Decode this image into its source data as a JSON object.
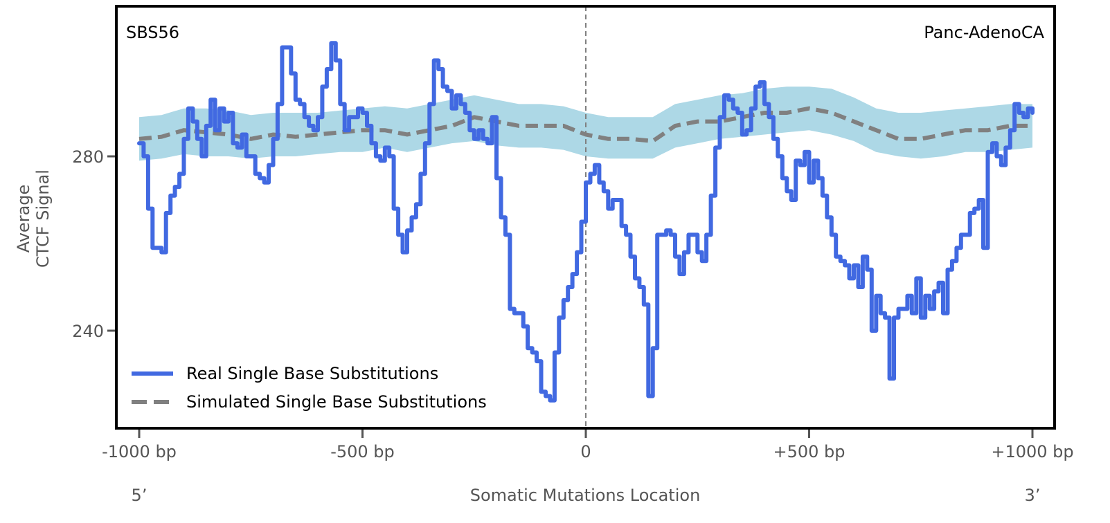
{
  "chart_data": {
    "type": "line",
    "signature_label": "SBS56",
    "cancer_type_label": "Panc-AdenoCA",
    "xlabel": "Somatic Mutations Location",
    "ylabel_lines": [
      "Average",
      "CTCF Signal"
    ],
    "xlim": [
      -1000,
      1000
    ],
    "ylim": [
      219,
      315
    ],
    "x_ticks": [
      {
        "value": -1000,
        "label": "-1000 bp"
      },
      {
        "value": -500,
        "label": "-500 bp"
      },
      {
        "value": 0,
        "label": "0"
      },
      {
        "value": 500,
        "label": "+500 bp"
      },
      {
        "value": 1000,
        "label": "+1000 bp"
      }
    ],
    "y_ticks": [
      {
        "value": 280,
        "label": "280"
      },
      {
        "value": 240,
        "label": "240"
      }
    ],
    "end_labels": {
      "left": "5’",
      "right": "3’"
    },
    "center_line": 0,
    "legend": {
      "placement": "lower-left",
      "entries": [
        {
          "label": "Real Single Base Substitutions",
          "style": "solid",
          "color": "#4169e1"
        },
        {
          "label": "Simulated Single Base Substitutions",
          "style": "dashed",
          "color": "#808080"
        }
      ]
    },
    "colors": {
      "real": "#4169e1",
      "simulated": "#808080",
      "band": "#add8e6"
    },
    "series": [
      {
        "name": "Real Single Base Substitutions",
        "x": [
          -1000,
          -990,
          -980,
          -970,
          -960,
          -950,
          -940,
          -930,
          -920,
          -910,
          -900,
          -890,
          -880,
          -870,
          -860,
          -850,
          -840,
          -830,
          -820,
          -810,
          -800,
          -790,
          -780,
          -770,
          -760,
          -750,
          -740,
          -730,
          -720,
          -710,
          -700,
          -690,
          -680,
          -670,
          -660,
          -650,
          -640,
          -630,
          -620,
          -610,
          -600,
          -590,
          -580,
          -570,
          -560,
          -550,
          -540,
          -530,
          -520,
          -510,
          -500,
          -490,
          -480,
          -470,
          -460,
          -450,
          -440,
          -430,
          -420,
          -410,
          -400,
          -390,
          -380,
          -370,
          -360,
          -350,
          -340,
          -330,
          -320,
          -310,
          -300,
          -290,
          -280,
          -270,
          -260,
          -250,
          -240,
          -230,
          -220,
          -210,
          -200,
          -190,
          -180,
          -170,
          -160,
          -150,
          -140,
          -130,
          -120,
          -110,
          -100,
          -90,
          -80,
          -70,
          -60,
          -50,
          -40,
          -30,
          -20,
          -10,
          0,
          10,
          20,
          30,
          40,
          50,
          60,
          70,
          80,
          90,
          100,
          110,
          120,
          130,
          140,
          150,
          160,
          170,
          180,
          190,
          200,
          210,
          220,
          230,
          240,
          250,
          260,
          270,
          280,
          290,
          300,
          310,
          320,
          330,
          340,
          350,
          360,
          370,
          380,
          390,
          400,
          410,
          420,
          430,
          440,
          450,
          460,
          470,
          480,
          490,
          500,
          510,
          520,
          530,
          540,
          550,
          560,
          570,
          580,
          590,
          600,
          610,
          620,
          630,
          640,
          650,
          660,
          670,
          680,
          690,
          700,
          710,
          720,
          730,
          740,
          750,
          760,
          770,
          780,
          790,
          800,
          810,
          820,
          830,
          840,
          850,
          860,
          870,
          880,
          890,
          900,
          910,
          920,
          930,
          940,
          950,
          960,
          970,
          980,
          990,
          1000
        ],
        "values": [
          283,
          280,
          268,
          259,
          259,
          258,
          267,
          271,
          273,
          276,
          284,
          291,
          288,
          284,
          280,
          287,
          293,
          286,
          291,
          288,
          290,
          283,
          282,
          285,
          280,
          280,
          276,
          275,
          274,
          278,
          284,
          292,
          305,
          305,
          299,
          293,
          292,
          289,
          287,
          286,
          289,
          296,
          300,
          306,
          302,
          292,
          286,
          289,
          289,
          291,
          290,
          287,
          283,
          280,
          279,
          282,
          280,
          268,
          262,
          258,
          263,
          266,
          269,
          276,
          283,
          292,
          302,
          300,
          296,
          295,
          291,
          294,
          292,
          290,
          286,
          284,
          286,
          284,
          283,
          289,
          275,
          266,
          262,
          245,
          244,
          244,
          241,
          236,
          235,
          233,
          226,
          225,
          224,
          235,
          243,
          247,
          250,
          253,
          258,
          265,
          274,
          276,
          278,
          274,
          272,
          268,
          270,
          270,
          264,
          262,
          257,
          252,
          250,
          246,
          225,
          236,
          262,
          262,
          263,
          262,
          257,
          253,
          258,
          262,
          262,
          258,
          256,
          262,
          271,
          282,
          289,
          294,
          293,
          291,
          290,
          285,
          286,
          291,
          296,
          297,
          292,
          289,
          284,
          280,
          275,
          272,
          270,
          279,
          278,
          281,
          274,
          279,
          275,
          271,
          266,
          262,
          257,
          256,
          255,
          252,
          255,
          250,
          257,
          254,
          240,
          248,
          244,
          243,
          229,
          243,
          245,
          245,
          248,
          244,
          252,
          243,
          248,
          245,
          249,
          251,
          244,
          254,
          256,
          259,
          262,
          262,
          267,
          268,
          270,
          259,
          281,
          283,
          280,
          278,
          282,
          286,
          292,
          290,
          289,
          291,
          290
        ],
        "linewidth_note": "solid"
      },
      {
        "name": "Simulated Single Base Substitutions",
        "x": [
          -1000,
          -950,
          -900,
          -850,
          -800,
          -750,
          -700,
          -650,
          -600,
          -550,
          -500,
          -450,
          -400,
          -350,
          -300,
          -250,
          -200,
          -150,
          -100,
          -50,
          0,
          50,
          100,
          150,
          200,
          250,
          300,
          350,
          400,
          450,
          500,
          550,
          600,
          650,
          700,
          750,
          800,
          850,
          900,
          950,
          1000
        ],
        "values": [
          284,
          284.5,
          286,
          285.5,
          285,
          284,
          285,
          284.5,
          285,
          285.5,
          286,
          286,
          285,
          286,
          287,
          289,
          288,
          287,
          287,
          287,
          285,
          284,
          284,
          283.5,
          287,
          288,
          288,
          289,
          290,
          290,
          291,
          290,
          288,
          286,
          284,
          284,
          285,
          286,
          286,
          287,
          287
        ],
        "band_lower": [
          279,
          279.5,
          280.5,
          280,
          280,
          279.5,
          280,
          280,
          280.5,
          281,
          281,
          282,
          281,
          282,
          283,
          283.5,
          282.5,
          282,
          282,
          281.5,
          280,
          279.5,
          279.5,
          279.5,
          282,
          283,
          284,
          284.5,
          285,
          285.5,
          286,
          285,
          283.5,
          281,
          280,
          279.5,
          280,
          281,
          281,
          281.5,
          282
        ],
        "band_upper": [
          289,
          289.5,
          291,
          291,
          290.5,
          289.5,
          290,
          290,
          290,
          290.5,
          291,
          291.5,
          291,
          292,
          293,
          294,
          293,
          292,
          292,
          291.5,
          290,
          289,
          289,
          289,
          292,
          293,
          294,
          294.5,
          295.5,
          296,
          296,
          295.5,
          293.5,
          291,
          290,
          290,
          290.5,
          291,
          291.5,
          292,
          292
        ]
      }
    ]
  }
}
